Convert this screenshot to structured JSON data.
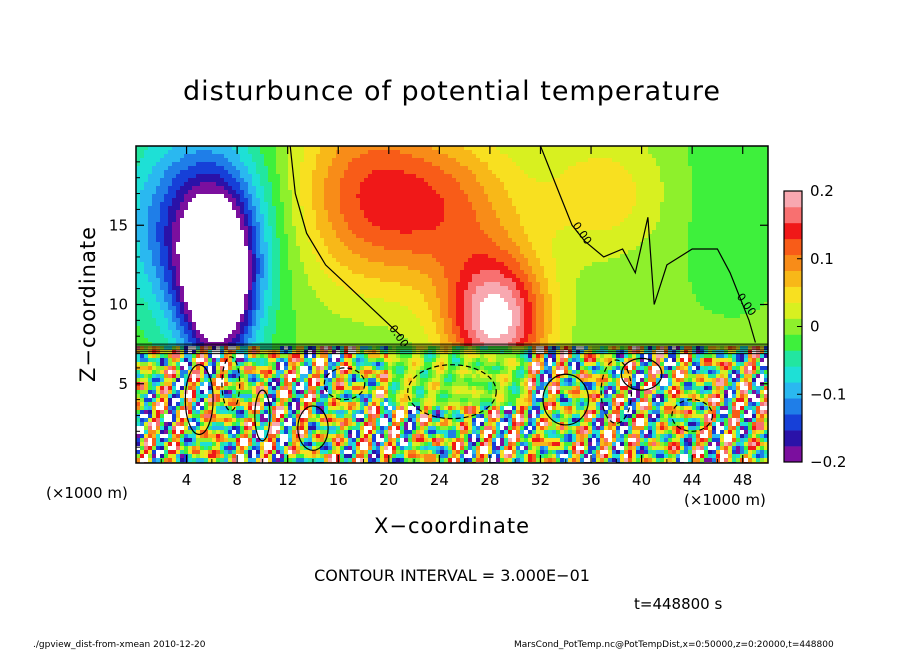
{
  "chart_data": {
    "type": "heatmap",
    "title": "disturbunce of potential temperature",
    "xlabel": "X−coordinate",
    "ylabel": "Z−coordinate",
    "x_unit_label": "(×1000 m)",
    "xlim": [
      0,
      50
    ],
    "ylim": [
      0,
      20
    ],
    "x_ticks": [
      4,
      8,
      12,
      16,
      20,
      24,
      28,
      32,
      36,
      40,
      44,
      48
    ],
    "x_tick_labels": [
      "4",
      "8",
      "12",
      "16",
      "20",
      "24",
      "28",
      "32",
      "36",
      "40",
      "44",
      "48"
    ],
    "y_ticks": [
      5,
      10,
      15
    ],
    "y_tick_labels": [
      "5",
      "10",
      "15"
    ],
    "colorbar": {
      "range": [
        -0.2,
        0.2
      ],
      "ticks": [
        -0.2,
        -0.1,
        0,
        0.1,
        0.2
      ],
      "tick_labels": [
        "−0.2",
        "−0.1",
        "0",
        "0.1",
        "0.2"
      ],
      "colors": [
        "#7b0f9e",
        "#2a12a8",
        "#1640d8",
        "#1f7ee8",
        "#2ab8f0",
        "#1ee0d6",
        "#22e6a0",
        "#3ef03c",
        "#8ef02c",
        "#d8f020",
        "#f8e020",
        "#f8b818",
        "#f88c18",
        "#f85c18",
        "#f01818",
        "#f87070",
        "#f8a8b0"
      ]
    },
    "contour_interval_text": "CONTOUR INTERVAL = 3.000E−01",
    "contour_label": "0.00",
    "time_text": "t=448800 s",
    "upper_layer_features": [
      {
        "x": 6.5,
        "z": 11,
        "value": -0.25,
        "sx": 2.8,
        "sz": 5
      },
      {
        "x": 5,
        "z": 15,
        "value": -0.16,
        "sx": 5.5,
        "sz": 6
      },
      {
        "x": 18,
        "z": 17,
        "value": 0.12,
        "sx": 6,
        "sz": 6
      },
      {
        "x": 25,
        "z": 16,
        "value": 0.1,
        "sx": 6,
        "sz": 5
      },
      {
        "x": 28.5,
        "z": 9,
        "value": 0.22,
        "sx": 4,
        "sz": 4
      },
      {
        "x": 37,
        "z": 17,
        "value": 0.06,
        "sx": 5,
        "sz": 4
      },
      {
        "x": 47,
        "z": 17,
        "value": -0.02,
        "sx": 4,
        "sz": 5
      }
    ]
  },
  "footer": {
    "left": "./gpview_dist-from-xmean  2010-12-20",
    "right": "MarsCond_PotTemp.nc@PotTempDist,x=0:50000,z=0:20000,t=448800"
  }
}
